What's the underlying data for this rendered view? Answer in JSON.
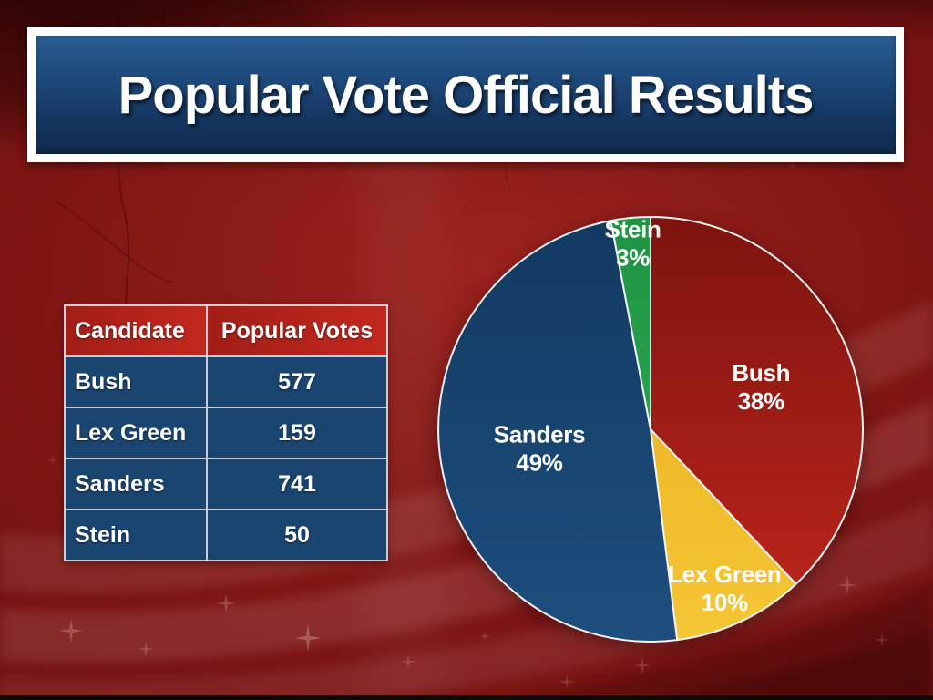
{
  "title": "Popular Vote Official Results",
  "table": {
    "headers": [
      "Candidate",
      "Popular Votes"
    ],
    "rows": [
      {
        "candidate": "Bush",
        "votes": "577"
      },
      {
        "candidate": "Lex Green",
        "votes": "159"
      },
      {
        "candidate": "Sanders",
        "votes": "741"
      },
      {
        "candidate": "Stein",
        "votes": "50"
      }
    ]
  },
  "chart_data": {
    "type": "pie",
    "title": "Popular Vote Official Results",
    "categories": [
      "Bush",
      "Lex Green",
      "Sanders",
      "Stein"
    ],
    "values": [
      38,
      10,
      49,
      3
    ],
    "unit": "percent",
    "slices": [
      {
        "name": "Bush",
        "pct_label": "38%",
        "value": 38,
        "color_top": "#7d140e",
        "color_bottom": "#b8241b"
      },
      {
        "name": "Lex Green",
        "pct_label": "10%",
        "value": 10,
        "color_top": "#eeb928",
        "color_bottom": "#f5c636"
      },
      {
        "name": "Sanders",
        "pct_label": "49%",
        "value": 49,
        "color_top": "#123a62",
        "color_bottom": "#1e4e7e"
      },
      {
        "name": "Stein",
        "pct_label": "3%",
        "value": 3,
        "color_top": "#1e9342",
        "color_bottom": "#28a34e"
      }
    ],
    "start_angle_deg": 0,
    "direction": "clockwise",
    "stroke_color": "#f2f2f2",
    "label_color": "#ffffff",
    "label_radius": [
      0.56,
      0.82,
      0.53,
      0.885
    ],
    "legend": "none"
  },
  "colors": {
    "background": "#7b1413",
    "banner_top": "#2a5c92",
    "banner_bottom": "#122b4e",
    "banner_border": "#ffffff",
    "table_header": "#b92419",
    "table_row": "#1a4570",
    "table_border": "#d7dce4",
    "text": "#ffffff"
  }
}
